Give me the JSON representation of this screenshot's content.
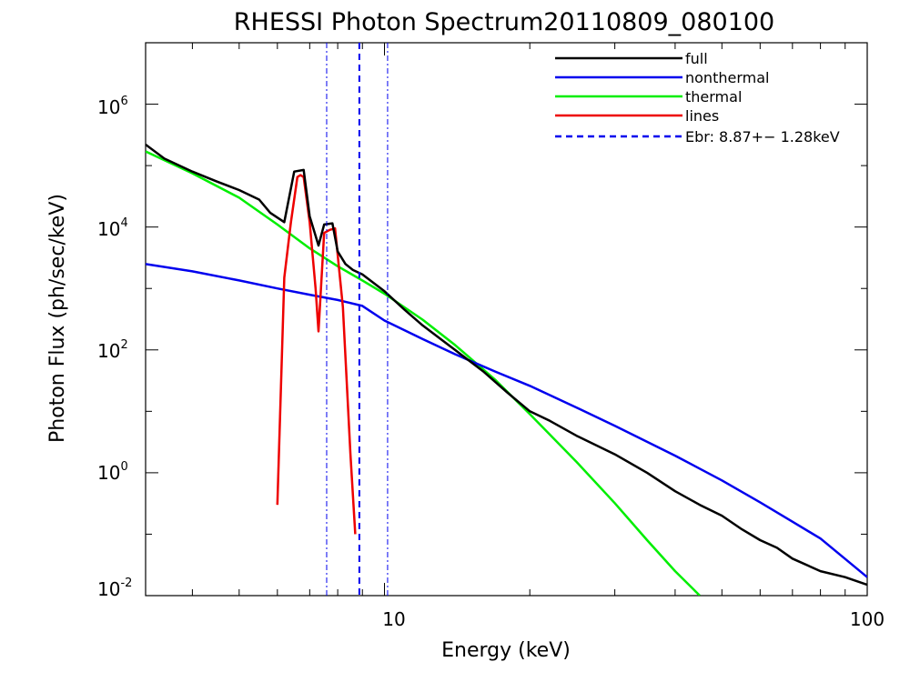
{
  "chart_data": {
    "type": "line",
    "title": "RHESSI Photon Spectrum20110809_080100",
    "xlabel": "Energy (keV)",
    "ylabel": "Photon Flux (ph/sec/keV)",
    "x_scale": "log",
    "y_scale": "log",
    "xlim": [
      3.2,
      100
    ],
    "ylim": [
      0.01,
      10000000.0
    ],
    "grid": false,
    "legend_position": "top-right",
    "x_ticks": [
      {
        "value": 10,
        "label": "10"
      },
      {
        "value": 100,
        "label": "100"
      }
    ],
    "y_ticks": [
      {
        "value": 0.01,
        "base": "10",
        "exp": "-2"
      },
      {
        "value": 1,
        "base": "10",
        "exp": "0"
      },
      {
        "value": 100,
        "base": "10",
        "exp": "2"
      },
      {
        "value": 10000,
        "base": "10",
        "exp": "4"
      },
      {
        "value": 1000000,
        "base": "10",
        "exp": "6"
      }
    ],
    "series": [
      {
        "name": "full",
        "color": "#000000",
        "style": "solid",
        "x": [
          3.2,
          3.5,
          4.0,
          4.5,
          5.0,
          5.5,
          5.8,
          6.2,
          6.5,
          6.8,
          7.0,
          7.3,
          7.5,
          7.8,
          8.0,
          8.3,
          8.6,
          9.0,
          10,
          11,
          12,
          14,
          16,
          18,
          20,
          22,
          25,
          30,
          35,
          40,
          45,
          50,
          55,
          60,
          65,
          70,
          80,
          90,
          100
        ],
        "y": [
          220000,
          130000,
          80000,
          55000,
          40000,
          28000,
          17000,
          12000,
          80000,
          85000,
          15000,
          5000,
          11000,
          11500,
          4000,
          2500,
          2000,
          1700,
          900,
          450,
          250,
          100,
          45,
          20,
          10,
          7,
          4,
          2,
          1,
          0.5,
          0.3,
          0.2,
          0.12,
          0.08,
          0.06,
          0.04,
          0.025,
          0.02,
          0.015
        ]
      },
      {
        "name": "nonthermal",
        "color": "#0000ee",
        "style": "solid",
        "x": [
          3.2,
          4.0,
          5.0,
          6.0,
          7.0,
          8.0,
          9.0,
          10,
          12,
          14,
          17,
          20,
          25,
          30,
          40,
          50,
          60,
          70,
          80,
          100
        ],
        "y": [
          2500,
          1900,
          1350,
          1000,
          790,
          650,
          520,
          300,
          150,
          85,
          44,
          26,
          11.5,
          5.8,
          1.9,
          0.75,
          0.33,
          0.16,
          0.085,
          0.02
        ]
      },
      {
        "name": "thermal",
        "color": "#00ee00",
        "style": "solid",
        "x": [
          3.2,
          4.0,
          5.0,
          6.0,
          7.0,
          8.0,
          9.0,
          10,
          12,
          14,
          17,
          20,
          25,
          30,
          35,
          40,
          45
        ],
        "y": [
          170000,
          75000,
          30000,
          11000,
          4500,
          2300,
          1350,
          820,
          310,
          120,
          32,
          9,
          1.5,
          0.32,
          0.08,
          0.025,
          0.01
        ]
      },
      {
        "name": "lines",
        "color": "#ee0000",
        "style": "solid",
        "x": [
          6.0,
          6.2,
          6.4,
          6.6,
          6.7,
          6.8,
          7.0,
          7.2,
          7.3,
          7.5,
          7.7,
          7.9,
          8.2,
          8.5,
          8.7
        ],
        "y": [
          0.3,
          1500,
          12000,
          65000,
          70000,
          65000,
          12000,
          1000,
          200,
          8000,
          9000,
          9500,
          500,
          2.0,
          0.1
        ]
      },
      {
        "name": "Ebr:   8.87+−  1.28keV",
        "color": "#0000ee",
        "style": "dashed",
        "vlines": [
          8.87
        ],
        "band": [
          7.59,
          10.15
        ]
      }
    ]
  }
}
